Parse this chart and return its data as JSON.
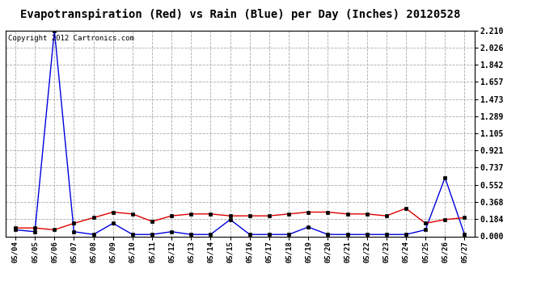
{
  "title": "Evapotranspiration (Red) vs Rain (Blue) per Day (Inches) 20120528",
  "copyright": "Copyright 2012 Cartronics.com",
  "dates": [
    "05/04",
    "05/05",
    "05/06",
    "05/07",
    "05/08",
    "05/09",
    "05/10",
    "05/11",
    "05/12",
    "05/13",
    "05/14",
    "05/15",
    "05/16",
    "05/17",
    "05/18",
    "05/19",
    "05/20",
    "05/21",
    "05/22",
    "05/23",
    "05/24",
    "05/25",
    "05/26",
    "05/27"
  ],
  "rain_blue": [
    0.07,
    0.05,
    2.21,
    0.05,
    0.02,
    0.14,
    0.02,
    0.02,
    0.05,
    0.02,
    0.02,
    0.18,
    0.02,
    0.02,
    0.02,
    0.1,
    0.02,
    0.02,
    0.02,
    0.02,
    0.02,
    0.07,
    0.63,
    0.02
  ],
  "evap_red": [
    0.09,
    0.09,
    0.07,
    0.14,
    0.2,
    0.26,
    0.24,
    0.16,
    0.22,
    0.24,
    0.24,
    0.22,
    0.22,
    0.22,
    0.24,
    0.26,
    0.26,
    0.24,
    0.24,
    0.22,
    0.3,
    0.14,
    0.18,
    0.2
  ],
  "ylim": [
    0.0,
    2.21
  ],
  "yticks": [
    0.0,
    0.184,
    0.368,
    0.552,
    0.737,
    0.921,
    1.105,
    1.289,
    1.473,
    1.657,
    1.842,
    2.026,
    2.21
  ],
  "bg_color": "#ffffff",
  "plot_bg": "#ffffff",
  "grid_color": "#aaaaaa",
  "blue_color": "#0000dd",
  "red_color": "#dd0000",
  "title_fontsize": 10,
  "copyright_fontsize": 6.5
}
